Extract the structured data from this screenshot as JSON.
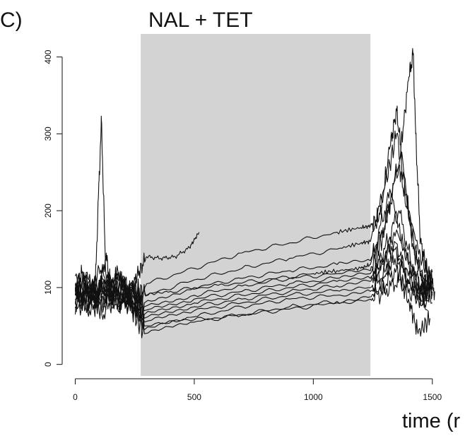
{
  "panel_label": "C)",
  "chart_data": {
    "type": "line",
    "title": "NAL + TET",
    "xlabel": "time (r",
    "ylabel": "",
    "xlim": [
      -40,
      1560
    ],
    "ylim": [
      -15,
      430
    ],
    "x_ticks": [
      0,
      500,
      1000,
      1500
    ],
    "y_ticks": [
      0,
      100,
      200,
      300,
      400
    ],
    "shaded_region": {
      "x": [
        275,
        1240
      ],
      "color": "#d3d3d3"
    },
    "line_color": "#111111",
    "grid": false,
    "legend": "none",
    "series": [
      {
        "x": [
          0,
          30,
          60,
          85,
          100,
          110,
          125,
          150,
          180,
          220,
          260,
          300,
          360,
          420,
          480,
          520
        ],
        "y": [
          95,
          120,
          80,
          110,
          240,
          318,
          150,
          100,
          120,
          90,
          115,
          140,
          138,
          140,
          152,
          172
        ]
      },
      {
        "x": [
          0,
          40,
          80,
          120,
          160,
          200,
          240,
          280,
          400,
          600,
          800,
          1000,
          1100,
          1200,
          1240,
          1300,
          1360,
          1400,
          1420,
          1430,
          1450,
          1480,
          1510
        ],
        "y": [
          80,
          115,
          70,
          130,
          85,
          110,
          75,
          90,
          95,
          103,
          110,
          118,
          122,
          125,
          130,
          200,
          260,
          370,
          405,
          300,
          160,
          120,
          95
        ]
      },
      {
        "x": [
          0,
          50,
          100,
          150,
          200,
          250,
          300,
          500,
          700,
          900,
          1100,
          1200,
          1240,
          1280,
          1320,
          1350,
          1380,
          1420,
          1460,
          1500
        ],
        "y": [
          100,
          75,
          125,
          85,
          115,
          70,
          105,
          125,
          145,
          158,
          172,
          178,
          180,
          195,
          280,
          330,
          250,
          150,
          110,
          100
        ]
      },
      {
        "x": [
          0,
          50,
          100,
          150,
          200,
          250,
          300,
          500,
          700,
          900,
          1100,
          1200,
          1240,
          1300,
          1350,
          1400,
          1450,
          1500
        ],
        "y": [
          90,
          120,
          70,
          110,
          80,
          100,
          90,
          110,
          125,
          138,
          150,
          158,
          160,
          230,
          300,
          200,
          140,
          105
        ]
      },
      {
        "x": [
          0,
          60,
          120,
          180,
          240,
          290,
          500,
          700,
          900,
          1100,
          1240,
          1300,
          1360,
          1400,
          1450,
          1500
        ],
        "y": [
          105,
          85,
          115,
          80,
          95,
          80,
          100,
          112,
          122,
          130,
          135,
          180,
          260,
          190,
          120,
          100
        ]
      },
      {
        "x": [
          0,
          60,
          120,
          180,
          240,
          290,
          500,
          700,
          900,
          1100,
          1240,
          1290,
          1330,
          1380,
          1440,
          1500
        ],
        "y": [
          75,
          110,
          90,
          120,
          70,
          75,
          90,
          102,
          112,
          118,
          122,
          165,
          220,
          150,
          100,
          90
        ]
      },
      {
        "x": [
          0,
          60,
          120,
          180,
          240,
          290,
          500,
          700,
          900,
          1100,
          1240,
          1300,
          1360,
          1420,
          1480
        ],
        "y": [
          115,
          90,
          100,
          75,
          105,
          70,
          85,
          95,
          105,
          112,
          118,
          150,
          200,
          120,
          85
        ]
      },
      {
        "x": [
          0,
          60,
          120,
          180,
          240,
          290,
          500,
          700,
          900,
          1100,
          1240,
          1300,
          1350,
          1400,
          1450,
          1500
        ],
        "y": [
          85,
          100,
          80,
          110,
          90,
          65,
          80,
          90,
          100,
          108,
          112,
          140,
          175,
          130,
          95,
          110
        ]
      },
      {
        "x": [
          0,
          60,
          120,
          180,
          240,
          290,
          500,
          700,
          900,
          1100,
          1240,
          1280,
          1340,
          1400,
          1460,
          1500
        ],
        "y": [
          95,
          70,
          110,
          85,
          75,
          60,
          75,
          85,
          95,
          102,
          108,
          130,
          160,
          110,
          80,
          120
        ]
      },
      {
        "x": [
          0,
          60,
          120,
          180,
          240,
          290,
          500,
          700,
          900,
          1100,
          1240,
          1300,
          1360,
          1420,
          1480
        ],
        "y": [
          65,
          95,
          75,
          100,
          80,
          55,
          70,
          80,
          90,
          96,
          100,
          120,
          140,
          100,
          70
        ]
      },
      {
        "x": [
          0,
          60,
          120,
          180,
          240,
          290,
          500,
          700,
          900,
          1100,
          1240,
          1300,
          1340,
          1400,
          1450,
          1500
        ],
        "y": [
          100,
          80,
          95,
          70,
          100,
          45,
          62,
          75,
          85,
          90,
          95,
          115,
          150,
          105,
          90,
          95
        ]
      },
      {
        "x": [
          0,
          60,
          120,
          180,
          240,
          290,
          500,
          700,
          900,
          1100,
          1240,
          1290,
          1350,
          1400,
          1440,
          1490
        ],
        "y": [
          80,
          105,
          65,
          95,
          70,
          40,
          55,
          65,
          75,
          82,
          88,
          100,
          125,
          85,
          40,
          60
        ]
      },
      {
        "x": [
          0,
          60,
          120,
          180,
          240,
          290,
          500,
          700,
          900,
          1100,
          1240,
          1300,
          1360,
          1420,
          1500
        ],
        "y": [
          90,
          75,
          105,
          80,
          90,
          50,
          58,
          64,
          72,
          80,
          85,
          95,
          110,
          90,
          80
        ]
      }
    ]
  }
}
